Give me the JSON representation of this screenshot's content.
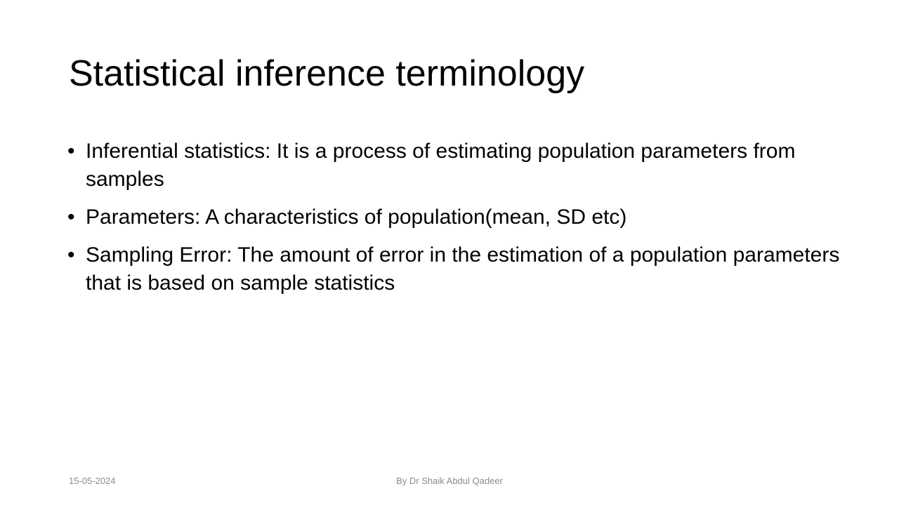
{
  "slide": {
    "title": "Statistical inference terminology",
    "bullets": [
      {
        "text": "Inferential statistics: It is a process of estimating population parameters from samples"
      },
      {
        "text": "Parameters: A characteristics of population(mean, SD etc)"
      },
      {
        "text": "Sampling Error: The amount of error in the estimation of a population parameters that is based on sample statistics"
      }
    ],
    "bullet_glyph": "•"
  },
  "footer": {
    "date": "15-05-2024",
    "author": "By Dr Shaik Abdul Qadeer"
  }
}
